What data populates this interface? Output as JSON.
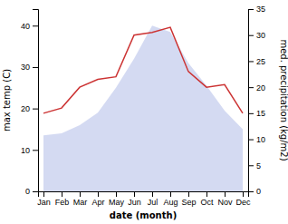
{
  "chart_data": {
    "type": "area",
    "xlabel": "date (month)",
    "ylabel": "max temp (C)",
    "y2label": "med. precipitation (kg/m2)",
    "categories": [
      "Jan",
      "Feb",
      "Mar",
      "Apr",
      "May",
      "Jun",
      "Jul",
      "Aug",
      "Sep",
      "Oct",
      "Nov",
      "Dec"
    ],
    "series": [
      {
        "type": "area",
        "color": "#b0bce8",
        "values": [
          13.5,
          14.0,
          16.0,
          19.0,
          25.0,
          32.0,
          40.0,
          38.5,
          31.0,
          25.5,
          19.5,
          15.0
        ]
      },
      {
        "type": "line",
        "color": "#cc3333",
        "axis": "y2",
        "values": [
          15.0,
          16.0,
          20.0,
          21.5,
          22.0,
          30.0,
          30.5,
          31.5,
          23.0,
          20.0,
          20.5,
          15.0
        ]
      }
    ],
    "ylim": [
      0,
      44
    ],
    "yticks": [
      0,
      10,
      20,
      30,
      40
    ],
    "y2lim": [
      0,
      35
    ],
    "y2ticks": [
      0,
      5,
      10,
      15,
      20,
      25,
      30,
      35
    ],
    "grid": false
  }
}
